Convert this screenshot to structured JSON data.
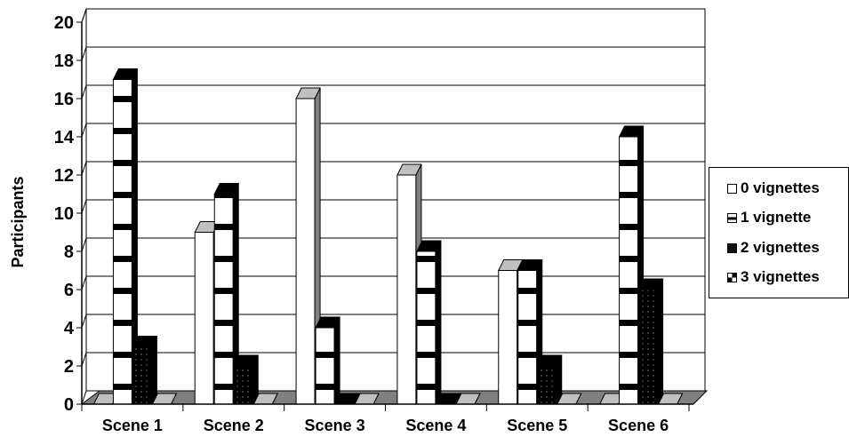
{
  "chart_data": {
    "type": "bar",
    "categories": [
      "Scene 1",
      "Scene 2",
      "Scene 3",
      "Scene 4",
      "Scene 5",
      "Scene 6"
    ],
    "series": [
      {
        "name": "0 vignettes",
        "values": [
          0,
          9,
          16,
          12,
          7,
          0
        ]
      },
      {
        "name": "1 vignette",
        "values": [
          17,
          11,
          4,
          8,
          7,
          14
        ]
      },
      {
        "name": "2 vignettes",
        "values": [
          3,
          2,
          0,
          0,
          2,
          6
        ]
      },
      {
        "name": "3 vignettes",
        "values": [
          0,
          0,
          0,
          0,
          0,
          0
        ]
      }
    ],
    "title": "",
    "xlabel": "",
    "ylabel": "Participants",
    "ylim": [
      0,
      20
    ],
    "yticks": [
      "0",
      "2",
      "4",
      "6",
      "8",
      "10",
      "12",
      "14",
      "16",
      "18",
      "20"
    ],
    "grid": true,
    "legend": "right",
    "style": "3d-clustered-column"
  }
}
